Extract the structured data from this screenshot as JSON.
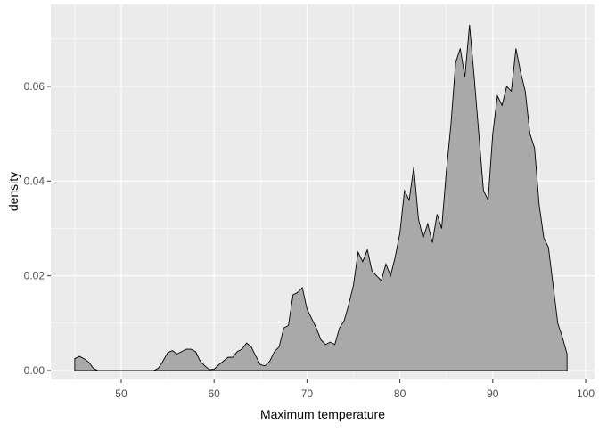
{
  "chart_data": {
    "type": "area",
    "x_label": "Maximum temperature",
    "y_label": "density",
    "x": [
      45,
      45.5,
      46,
      46.5,
      47,
      47.5,
      48,
      48.5,
      49,
      49.5,
      50,
      50.5,
      51,
      51.5,
      52,
      52.5,
      53,
      53.5,
      54,
      54.5,
      55,
      55.5,
      56,
      56.5,
      57,
      57.5,
      58,
      58.5,
      59,
      59.5,
      60,
      60.5,
      61,
      61.5,
      62,
      62.5,
      63,
      63.5,
      64,
      64.5,
      65,
      65.5,
      66,
      66.5,
      67,
      67.5,
      68,
      68.5,
      69,
      69.5,
      70,
      70.5,
      71,
      71.5,
      72,
      72.5,
      73,
      73.5,
      74,
      74.5,
      75,
      75.5,
      76,
      76.5,
      77,
      77.5,
      78,
      78.5,
      79,
      79.5,
      80,
      80.5,
      81,
      81.5,
      82,
      82.5,
      83,
      83.5,
      84,
      84.5,
      85,
      85.5,
      86,
      86.5,
      87,
      87.5,
      88,
      88.5,
      89,
      89.5,
      90,
      90.5,
      91,
      91.5,
      92,
      92.5,
      93,
      93.5,
      94,
      94.5,
      95,
      95.5,
      96,
      96.5,
      97,
      97.5,
      98
    ],
    "values": [
      0.0025,
      0.003,
      0.0025,
      0.0018,
      0.0005,
      0,
      0,
      0,
      0,
      0,
      0,
      0,
      0,
      0,
      0,
      0,
      0,
      0,
      0.0005,
      0.002,
      0.0038,
      0.0042,
      0.0035,
      0.004,
      0.0045,
      0.0045,
      0.004,
      0.002,
      0.001,
      0.0002,
      0.0003,
      0.0012,
      0.002,
      0.0028,
      0.0028,
      0.004,
      0.0045,
      0.0058,
      0.005,
      0.003,
      0.0012,
      0.001,
      0.002,
      0.004,
      0.005,
      0.009,
      0.0095,
      0.016,
      0.0165,
      0.0175,
      0.013,
      0.011,
      0.009,
      0.0065,
      0.0055,
      0.006,
      0.0055,
      0.009,
      0.0105,
      0.014,
      0.018,
      0.025,
      0.023,
      0.0255,
      0.021,
      0.02,
      0.019,
      0.0225,
      0.02,
      0.024,
      0.029,
      0.038,
      0.036,
      0.043,
      0.032,
      0.028,
      0.031,
      0.027,
      0.033,
      0.03,
      0.042,
      0.052,
      0.065,
      0.068,
      0.062,
      0.073,
      0.062,
      0.05,
      0.038,
      0.036,
      0.05,
      0.058,
      0.056,
      0.06,
      0.059,
      0.068,
      0.063,
      0.059,
      0.05,
      0.047,
      0.035,
      0.028,
      0.026,
      0.018,
      0.01,
      0.007,
      0.0035
    ],
    "color": "#a9a9a9",
    "xlim": [
      42.42,
      100.96
    ],
    "ylim": [
      -0.00188,
      0.0773
    ],
    "xticks": [
      50,
      60,
      70,
      80,
      90,
      100
    ],
    "yticks": [
      {
        "value": 0,
        "label": "0.00"
      },
      {
        "value": 0.02,
        "label": "0.02"
      },
      {
        "value": 0.04,
        "label": "0.04"
      },
      {
        "value": 0.06,
        "label": "0.06"
      }
    ],
    "x_minor_grid": [
      45,
      55,
      65,
      75,
      85,
      95
    ],
    "y_minor_grid": [
      0.01,
      0.03,
      0.05,
      0.07
    ],
    "grid": true
  }
}
